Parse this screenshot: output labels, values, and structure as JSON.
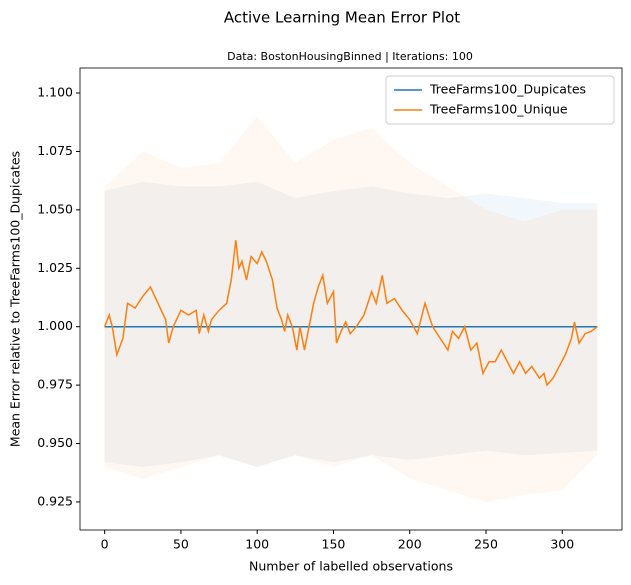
{
  "chart_data": {
    "type": "line",
    "title": "Active Learning Mean Error Plot",
    "subtitle": "Data: BostonHousingBinned | Iterations: 100",
    "xlabel": "Number of labelled observations",
    "ylabel": "Mean Error relative to TreeFarms100_Dupicates",
    "xlim": [
      -16.15,
      339.15
    ],
    "ylim": [
      0.913,
      1.1107
    ],
    "xticks": [
      0,
      50,
      100,
      150,
      200,
      250,
      300
    ],
    "yticks": [
      {
        "value": 0.925,
        "label": "0.925"
      },
      {
        "value": 0.95,
        "label": "0.950"
      },
      {
        "value": 0.975,
        "label": "0.975"
      },
      {
        "value": 1.0,
        "label": "1.000"
      },
      {
        "value": 1.025,
        "label": "1.025"
      },
      {
        "value": 1.05,
        "label": "1.050"
      },
      {
        "value": 1.075,
        "label": "1.075"
      },
      {
        "value": 1.1,
        "label": "1.100"
      }
    ],
    "legend": "upper right",
    "series": [
      {
        "name": "TreeFarms100_Dupicates",
        "color": "#1f77b4",
        "x": [
          0,
          323
        ],
        "values": [
          1.0,
          1.0
        ],
        "band_x": [
          0,
          25,
          50,
          75,
          100,
          125,
          150,
          175,
          200,
          225,
          250,
          275,
          300,
          323
        ],
        "band_upper": [
          1.058,
          1.062,
          1.06,
          1.06,
          1.062,
          1.055,
          1.058,
          1.06,
          1.057,
          1.055,
          1.057,
          1.055,
          1.053,
          1.053
        ],
        "band_lower": [
          0.942,
          0.94,
          0.942,
          0.945,
          0.94,
          0.945,
          0.942,
          0.945,
          0.943,
          0.945,
          0.947,
          0.945,
          0.946,
          0.947
        ]
      },
      {
        "name": "TreeFarms100_Unique",
        "color": "#ff7f0e",
        "x": [
          0,
          3,
          5,
          8,
          12,
          15,
          20,
          25,
          30,
          35,
          40,
          42,
          45,
          50,
          55,
          60,
          62,
          65,
          68,
          70,
          75,
          80,
          83,
          86,
          88,
          90,
          93,
          96,
          100,
          103,
          106,
          110,
          113,
          116,
          118,
          120,
          123,
          126,
          128,
          131,
          134,
          137,
          140,
          143,
          146,
          150,
          152,
          155,
          158,
          161,
          165,
          170,
          175,
          178,
          182,
          185,
          190,
          195,
          200,
          205,
          210,
          215,
          220,
          225,
          228,
          232,
          236,
          240,
          244,
          248,
          252,
          256,
          260,
          264,
          268,
          272,
          276,
          280,
          285,
          288,
          290,
          294,
          298,
          302,
          306,
          308,
          311,
          315,
          319,
          323
        ],
        "values": [
          1.0,
          1.005,
          1.0,
          0.988,
          0.995,
          1.01,
          1.008,
          1.013,
          1.017,
          1.01,
          1.003,
          0.993,
          1.0,
          1.007,
          1.005,
          1.007,
          0.997,
          1.005,
          0.998,
          1.003,
          1.007,
          1.01,
          1.02,
          1.037,
          1.025,
          1.028,
          1.02,
          1.03,
          1.027,
          1.032,
          1.028,
          1.02,
          1.008,
          1.003,
          0.998,
          1.005,
          1.0,
          0.99,
          1.0,
          0.99,
          1.0,
          1.01,
          1.017,
          1.022,
          1.01,
          1.015,
          0.993,
          0.998,
          1.002,
          0.997,
          1.0,
          1.005,
          1.015,
          1.01,
          1.022,
          1.01,
          1.012,
          1.007,
          1.003,
          0.997,
          1.01,
          1.0,
          0.995,
          0.99,
          0.998,
          0.995,
          1.0,
          0.99,
          0.993,
          0.98,
          0.985,
          0.985,
          0.99,
          0.985,
          0.98,
          0.985,
          0.98,
          0.983,
          0.978,
          0.98,
          0.975,
          0.978,
          0.983,
          0.988,
          0.995,
          1.002,
          0.993,
          0.997,
          0.998,
          1.0
        ],
        "band_x": [
          0,
          25,
          50,
          75,
          100,
          125,
          150,
          175,
          200,
          225,
          250,
          275,
          300,
          323
        ],
        "band_upper": [
          1.06,
          1.075,
          1.068,
          1.07,
          1.09,
          1.07,
          1.08,
          1.085,
          1.07,
          1.06,
          1.05,
          1.045,
          1.05,
          1.05
        ],
        "band_lower": [
          0.94,
          0.935,
          0.94,
          0.945,
          0.94,
          0.945,
          0.94,
          0.945,
          0.935,
          0.93,
          0.925,
          0.928,
          0.93,
          0.945
        ]
      }
    ]
  }
}
